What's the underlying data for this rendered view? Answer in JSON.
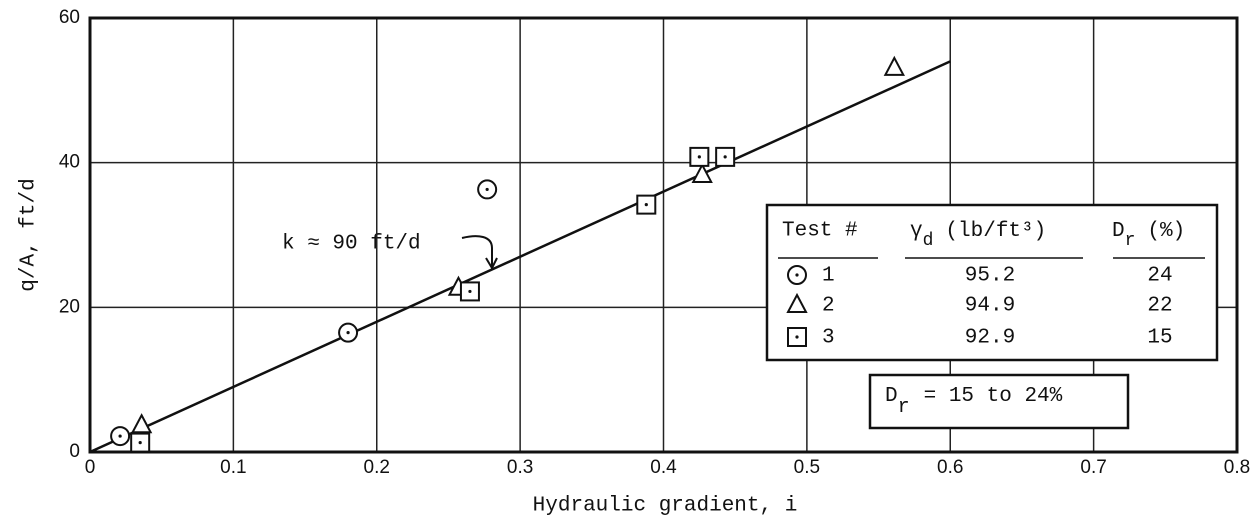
{
  "chart_data": {
    "type": "scatter",
    "x_label": "Hydraulic gradient, i",
    "y_label": "q/A, ft/d",
    "xlim": [
      0,
      0.8
    ],
    "xticks": [
      0,
      0.1,
      0.2,
      0.3,
      0.4,
      0.5,
      0.6,
      0.7,
      0.8
    ],
    "ylim": [
      0,
      60
    ],
    "yticks": [
      0,
      20,
      40,
      60
    ],
    "grid": true,
    "color": "#111111",
    "series": [
      {
        "name": "1",
        "marker": "circle",
        "gamma_d": 95.2,
        "dr": 24,
        "x": [
          0.021,
          0.18,
          0.277
        ],
        "values": [
          2.2,
          16.5,
          36.3
        ]
      },
      {
        "name": "2",
        "marker": "triangle",
        "gamma_d": 94.9,
        "dr": 22,
        "x": [
          0.036,
          0.257,
          0.427,
          0.561
        ],
        "values": [
          3.7,
          22.7,
          38.3,
          53.1
        ]
      },
      {
        "name": "3",
        "marker": "square",
        "gamma_d": 92.9,
        "dr": 15,
        "x": [
          0.035,
          0.265,
          0.388,
          0.425,
          0.443
        ],
        "values": [
          1.3,
          22.2,
          34.2,
          40.8,
          40.8
        ]
      }
    ],
    "fit_line": {
      "x": [
        0,
        0.6
      ],
      "values": [
        0,
        54
      ]
    },
    "annotation": "k ≈ 90 ft/d",
    "legend_headers": {
      "test": "Test #",
      "gamma": {
        "symbol": "γ",
        "subscript": "d",
        "text": "(lb/ft³)"
      },
      "dr": {
        "symbol": "D",
        "subscript": "r",
        "text": "(%)"
      }
    },
    "note": {
      "symbol": "D",
      "subscript": "r",
      "text": "= 15 to 24%"
    }
  }
}
